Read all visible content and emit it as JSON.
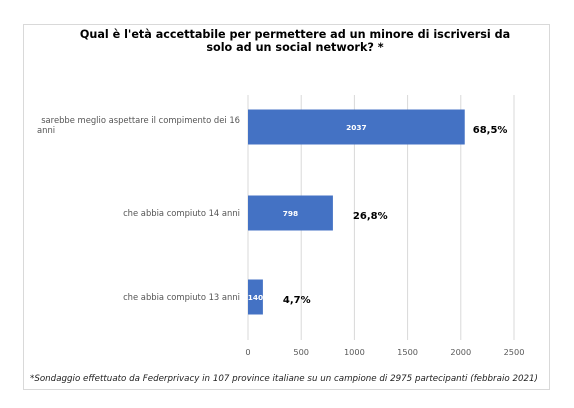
{
  "chart_data": {
    "type": "bar",
    "orientation": "horizontal",
    "title": "Qual è l'età accettabile per permettere ad un minore di iscriversi da solo ad un social network? *",
    "categories": [
      "sarebbe meglio aspettare il compimento dei 16 anni",
      "che abbia compiuto 14 anni",
      "che abbia compiuto 13 anni"
    ],
    "category_lines": [
      [
        "sarebbe meglio aspettare il compimento dei 16",
        "anni"
      ],
      [
        "che abbia compiuto 14 anni"
      ],
      [
        "che abbia compiuto 13 anni"
      ]
    ],
    "values": [
      2037,
      798,
      140
    ],
    "percent_labels": [
      "68,5%",
      "26,8%",
      "4,7%"
    ],
    "xlim": [
      0,
      2500
    ],
    "xticks": [
      0,
      500,
      1000,
      1500,
      2000,
      2500
    ],
    "xlabel": "",
    "ylabel": "",
    "grid": true,
    "bar_color": "#4472c4",
    "grid_color": "#d9d9d9"
  },
  "footnote": "*Sondaggio effettuato da Federprivacy in 107 province italiane su un campione di 2975 partecipanti (febbraio 2021)"
}
